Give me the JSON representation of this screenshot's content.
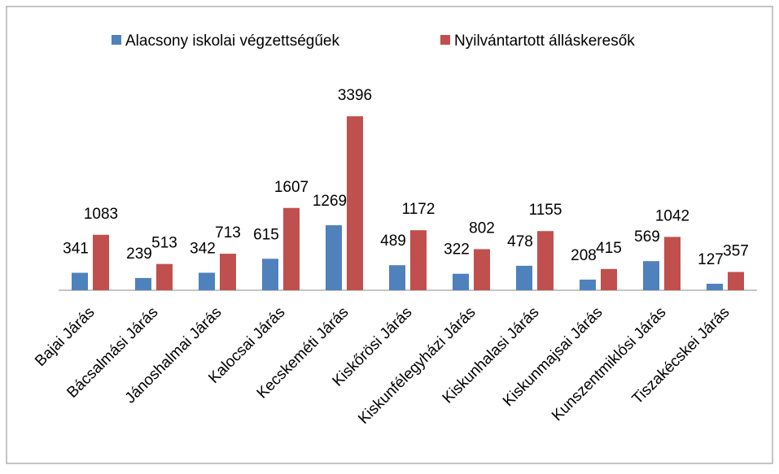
{
  "chart_data": {
    "type": "bar",
    "categories": [
      "Bajai Járás",
      "Bácsalmási Járás",
      "Jánoshalmai Járás",
      "Kalocsai Járás",
      "Kecskeméti Járás",
      "Kiskőrösi Járás",
      "Kiskunfélegyházi Járás",
      "Kiskunhalasi Járás",
      "Kiskunmajsai Járás",
      "Kunszentmiklósi Járás",
      "Tiszakécskei Járás"
    ],
    "series": [
      {
        "name": "Alacsony iskolai végzettségűek",
        "color": "#4f81bd",
        "values": [
          341,
          239,
          342,
          615,
          1269,
          489,
          322,
          478,
          208,
          569,
          127
        ]
      },
      {
        "name": "Nyilvántartott álláskeresők",
        "color": "#c0504d",
        "values": [
          1083,
          513,
          713,
          1607,
          3396,
          1172,
          802,
          1155,
          415,
          1042,
          357
        ]
      }
    ],
    "ylim": [
      0,
      4000
    ],
    "legend": "top"
  }
}
